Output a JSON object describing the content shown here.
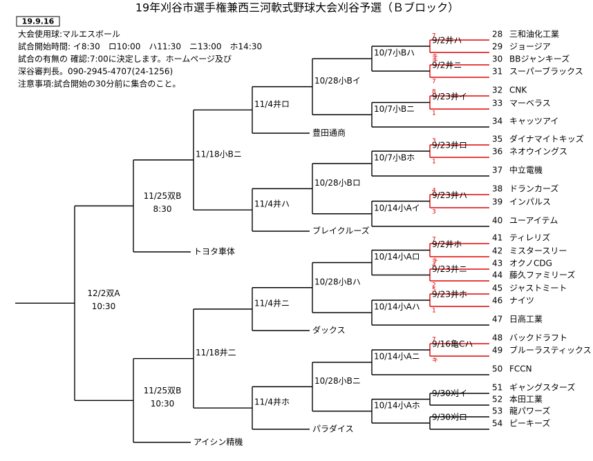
{
  "header": {
    "title": "19年刈谷市選手権兼西三河軟式野球大会刈谷予選（Ｂブロック）",
    "date": "19.9.16"
  },
  "notes": [
    "大会使用球:マルエスボール",
    "試合開始時間: イ8:30　ロ10:00　ハ11:30　ニ13:00　ホ14:30",
    "試合の有無の 確認:7:00に決定します。ホームページ及び",
    "深谷審判長。090-2945-4707(24-1256)",
    "注意事項:試合開始の30分前に集合のこと。"
  ],
  "teams": [
    {
      "no": 28,
      "name": "三和油化工業"
    },
    {
      "no": 29,
      "name": "ジョージア"
    },
    {
      "no": 30,
      "name": "BBジャンキーズ"
    },
    {
      "no": 31,
      "name": "スーパーブラックス"
    },
    {
      "no": 32,
      "name": "CNK"
    },
    {
      "no": 33,
      "name": "マーベラス"
    },
    {
      "no": 34,
      "name": "キャッツアイ"
    },
    {
      "no": 35,
      "name": "ダイナマイトキッズ"
    },
    {
      "no": 36,
      "name": "ネオウイングス"
    },
    {
      "no": 37,
      "name": "中立電機"
    },
    {
      "no": 38,
      "name": "ドランカーズ"
    },
    {
      "no": 39,
      "name": "インパルス"
    },
    {
      "no": 40,
      "name": "ユーアイテム"
    },
    {
      "no": 41,
      "name": "ティレリズ"
    },
    {
      "no": 42,
      "name": "ミスタースリー"
    },
    {
      "no": 43,
      "name": "オクノCDG"
    },
    {
      "no": 44,
      "name": "藤久ファミリーズ"
    },
    {
      "no": 45,
      "name": "ジャストミート"
    },
    {
      "no": 46,
      "name": "ナイツ"
    },
    {
      "no": 47,
      "name": "日高工業"
    },
    {
      "no": 48,
      "name": "バックドラフト"
    },
    {
      "no": 49,
      "name": "ブルーラスティックス"
    },
    {
      "no": 50,
      "name": "FCCN"
    },
    {
      "no": 51,
      "name": "ギャングスターズ"
    },
    {
      "no": 52,
      "name": "本田工業"
    },
    {
      "no": 53,
      "name": "龍パワーズ"
    },
    {
      "no": 54,
      "name": "ピーキーズ"
    }
  ],
  "seeds": [
    "豊田通商",
    "ブレイクルーズ",
    "トヨタ車体",
    "ダックス",
    "パラダイス",
    "アイシン精機"
  ],
  "rounds": [
    [
      {
        "label": "9/2井ハ",
        "scores": [
          "7",
          "キ"
        ]
      },
      {
        "label": "9/2井ニ",
        "scores": [
          "キ",
          "7"
        ]
      },
      {
        "label": "9/23井イ",
        "scores": [
          "8",
          "1"
        ]
      },
      {
        "label": "9/23井ロ",
        "scores": [
          "3",
          "1"
        ]
      },
      {
        "label": "9/23井ハ",
        "scores": [
          "4",
          "3"
        ]
      },
      {
        "label": "9/2井ホ",
        "scores": [
          "7",
          "キ"
        ]
      },
      {
        "label": "9/23井ニ",
        "scores": [
          "4",
          "2"
        ]
      },
      {
        "label": "9/23井ホ",
        "scores": [
          "5",
          "1"
        ]
      },
      {
        "label": "9/16亀Cハ",
        "scores": [
          "7",
          "キ"
        ]
      },
      {
        "label": "9/30刈イ"
      },
      {
        "label": "9/30刈ロ"
      }
    ],
    [
      {
        "label": "10/7小Bハ"
      },
      {
        "label": "10/7小Bニ"
      },
      {
        "label": "10/7小Bホ"
      },
      {
        "label": "10/14小Aイ"
      },
      {
        "label": "10/14小Aロ"
      },
      {
        "label": "10/14小Aハ"
      },
      {
        "label": "10/14小Aニ"
      },
      {
        "label": "10/14小Aホ"
      }
    ],
    [
      {
        "label": "10/28小Bイ"
      },
      {
        "label": "10/28小Bロ"
      },
      {
        "label": "10/28小Bハ"
      },
      {
        "label": "10/28小Bニ"
      }
    ],
    [
      {
        "label": "11/4井ロ"
      },
      {
        "label": "11/4井ハ"
      },
      {
        "label": "11/4井ニ"
      },
      {
        "label": "11/4井ホ"
      }
    ],
    [
      {
        "label": "11/18小Bニ"
      },
      {
        "label": "11/18井二"
      }
    ],
    [
      {
        "label": "11/25双B",
        "time": "8:30"
      },
      {
        "label": "11/25双B",
        "time": "10:30"
      }
    ],
    [
      {
        "label": "12/2双A",
        "time": "10:30"
      }
    ]
  ]
}
